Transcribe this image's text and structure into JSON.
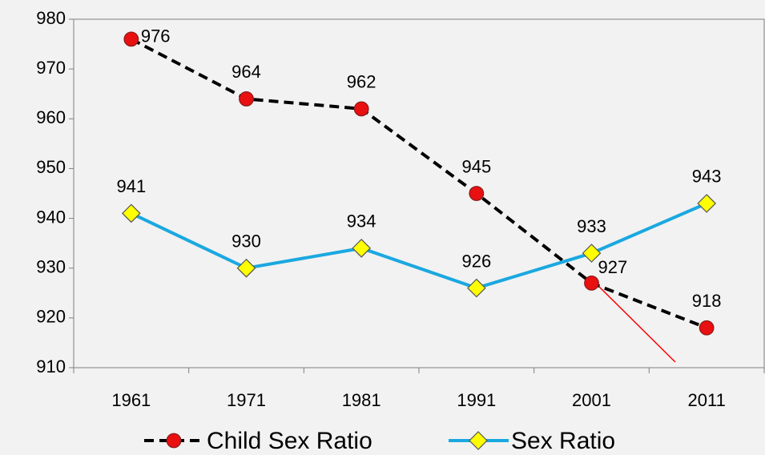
{
  "chart_data": {
    "type": "line",
    "categories": [
      "1961",
      "1971",
      "1981",
      "1991",
      "2001",
      "2011"
    ],
    "series": [
      {
        "name": "Child Sex Ratio",
        "color": "#000000",
        "marker_color": "#e81010",
        "marker": "circle",
        "dashed": true,
        "values": [
          976,
          964,
          962,
          945,
          927,
          918
        ]
      },
      {
        "name": "Sex Ratio",
        "color": "#1aa8e0",
        "marker_color": "#ffff00",
        "marker": "diamond",
        "dashed": false,
        "values": [
          941,
          930,
          934,
          926,
          933,
          943
        ]
      }
    ],
    "ylim": [
      910,
      980
    ],
    "yticks": [
      910,
      920,
      930,
      940,
      950,
      960,
      970,
      980
    ]
  }
}
